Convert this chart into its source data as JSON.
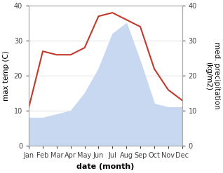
{
  "months": [
    "Jan",
    "Feb",
    "Mar",
    "Apr",
    "May",
    "Jun",
    "Jul",
    "Aug",
    "Sep",
    "Oct",
    "Nov",
    "Dec"
  ],
  "temperature": [
    11,
    27,
    26,
    26,
    28,
    37,
    38,
    36,
    34,
    22,
    16,
    13
  ],
  "precipitation": [
    8,
    8,
    9,
    10,
    15,
    22,
    32,
    35,
    24,
    12,
    11,
    11
  ],
  "temp_color": "#c0392b",
  "precip_fill_color": "#c8d8f0",
  "ylim": [
    0,
    40
  ],
  "yticks": [
    0,
    10,
    20,
    30,
    40
  ],
  "ylabel_left": "max temp (C)",
  "ylabel_right": "med. precipitation\n(kg/m2)",
  "xlabel": "date (month)",
  "tick_fontsize": 7,
  "label_fontsize": 7.5,
  "xlabel_fontsize": 8
}
